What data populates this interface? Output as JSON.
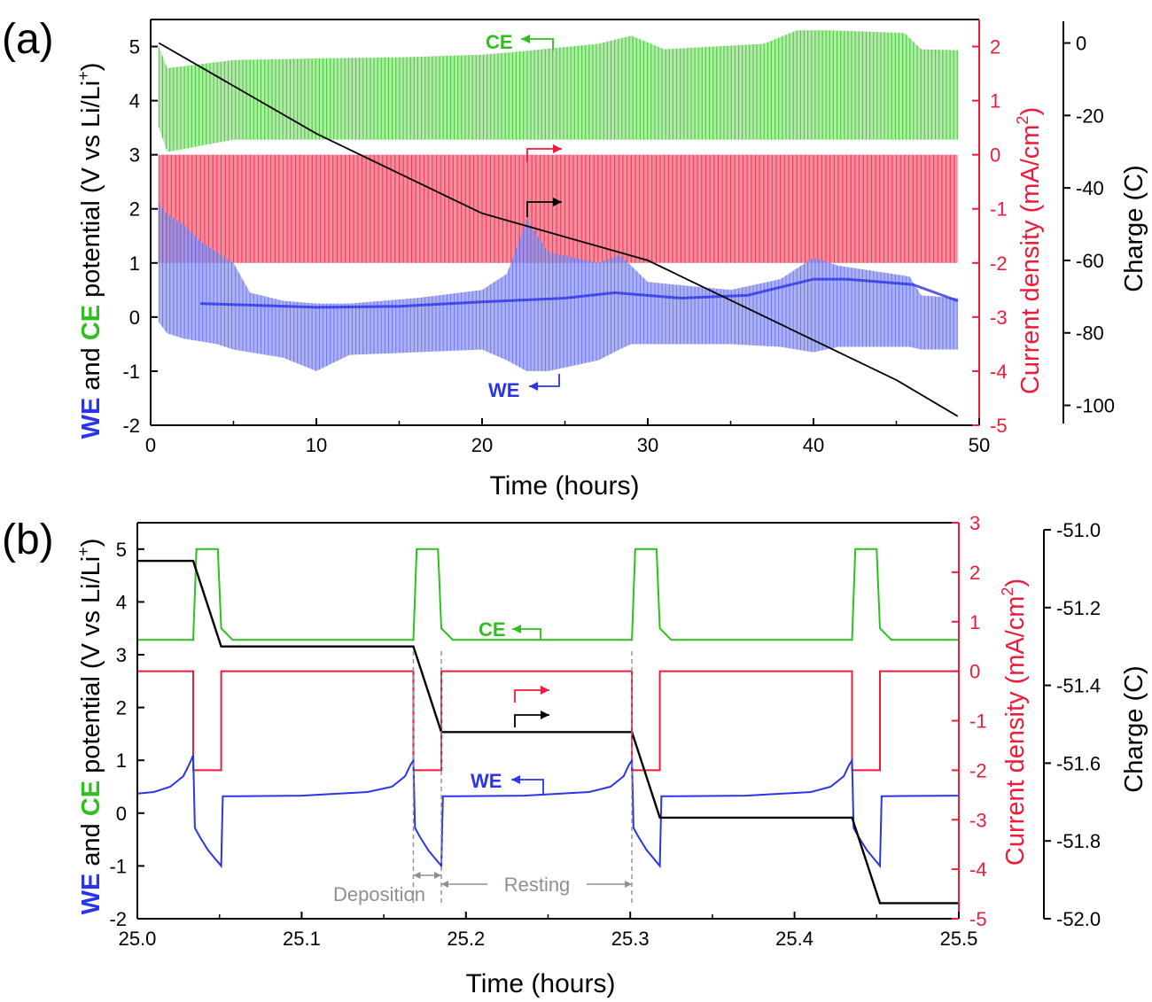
{
  "colors": {
    "we": "#2a35e8",
    "we_light": "#8f97ee",
    "ce": "#2fbf1e",
    "ce_light": "#a3e69a",
    "current": "#ee1c3a",
    "current_light": "#f47f92",
    "charge": "#000000",
    "annot": "#8a9190"
  },
  "chart_data": [
    {
      "panel_label": "(a)",
      "type": "line",
      "x": {
        "label": "Time (hours)",
        "lim": [
          0,
          50
        ],
        "ticks": [
          "0",
          "10",
          "20",
          "30",
          "40",
          "50"
        ]
      },
      "y_left": {
        "label_parts": [
          "WE",
          " and ",
          "CE",
          " potential (V vs Li/Li",
          "+",
          ")"
        ],
        "lim": [
          -2,
          5.5
        ],
        "ticks": [
          "-2",
          "-1",
          "0",
          "1",
          "2",
          "3",
          "4",
          "5"
        ]
      },
      "y_right1": {
        "label": "Current density (mA/cm",
        "label_sup": "2",
        "label_end": ")",
        "lim": [
          -5,
          2.5
        ],
        "ticks": [
          "-5",
          "-4",
          "-3",
          "-2",
          "-1",
          "0",
          "1",
          "2"
        ]
      },
      "y_right2": {
        "label": "Charge (C)",
        "lim": [
          -105,
          6
        ],
        "ticks": [
          "-100",
          "-80",
          "-60",
          "-40",
          "-20",
          "0"
        ]
      },
      "annotations": {
        "ce": "CE",
        "we": "WE"
      },
      "series": [
        {
          "name": "CE",
          "axis": "left",
          "render": "band",
          "x": [
            0.5,
            1.0,
            5,
            10,
            15,
            20,
            22,
            27,
            29,
            31,
            37,
            39,
            41,
            45.5,
            46.5,
            48.7
          ],
          "upper": [
            5.0,
            4.6,
            4.75,
            4.78,
            4.8,
            4.85,
            4.9,
            5.05,
            5.2,
            4.95,
            5.05,
            5.3,
            5.3,
            5.25,
            4.95,
            4.93
          ],
          "lower": [
            3.5,
            3.05,
            3.28,
            3.28,
            3.28,
            3.28,
            3.28,
            3.28,
            3.28,
            3.28,
            3.28,
            3.28,
            3.28,
            3.28,
            3.28,
            3.28
          ]
        },
        {
          "name": "Current density",
          "axis": "right1",
          "render": "band",
          "x": [
            0.5,
            48.7
          ],
          "upper": [
            0,
            0
          ],
          "lower": [
            -2,
            -2
          ]
        },
        {
          "name": "WE",
          "axis": "left",
          "render": "band",
          "x": [
            0.5,
            1,
            2,
            3,
            4,
            5,
            6,
            8,
            10,
            12,
            16,
            20,
            21.5,
            22.7,
            24,
            27,
            28.3,
            29,
            30,
            35,
            38,
            40,
            41.5,
            45.8,
            46.5,
            48.7
          ],
          "upper": [
            2.1,
            1.9,
            1.7,
            1.4,
            1.2,
            1.0,
            0.45,
            0.3,
            0.25,
            0.25,
            0.35,
            0.5,
            0.8,
            1.8,
            1.2,
            1.0,
            1.15,
            0.95,
            0.65,
            0.5,
            0.7,
            1.1,
            0.95,
            0.75,
            0.4,
            0.35
          ],
          "lower": [
            -0.1,
            -0.3,
            -0.4,
            -0.45,
            -0.5,
            -0.6,
            -0.65,
            -0.75,
            -1.0,
            -0.7,
            -0.65,
            -0.6,
            -0.8,
            -1.0,
            -1.0,
            -0.8,
            -0.6,
            -0.5,
            -0.5,
            -0.5,
            -0.55,
            -0.65,
            -0.55,
            -0.55,
            -0.6,
            -0.6
          ]
        },
        {
          "name": "WE mid",
          "axis": "left",
          "render": "line",
          "x": [
            3,
            6,
            10,
            15,
            20,
            25,
            28,
            32,
            36,
            40,
            42,
            46,
            48.7
          ],
          "y": [
            0.25,
            0.22,
            0.18,
            0.2,
            0.28,
            0.35,
            0.45,
            0.35,
            0.4,
            0.7,
            0.7,
            0.6,
            0.3
          ]
        },
        {
          "name": "Charge",
          "axis": "right2",
          "render": "line",
          "x": [
            0.5,
            10,
            20,
            30,
            40,
            45,
            48.7
          ],
          "y": [
            0,
            -25,
            -47,
            -60,
            -82,
            -93,
            -103
          ]
        }
      ]
    },
    {
      "panel_label": "(b)",
      "type": "line",
      "x": {
        "label": "Time (hours)",
        "lim": [
          25.0,
          25.5
        ],
        "ticks": [
          "25.0",
          "25.1",
          "25.2",
          "25.3",
          "25.4",
          "25.5"
        ]
      },
      "y_left": {
        "label_parts": [
          "WE",
          " and ",
          "CE",
          " potential (V vs Li/Li",
          "+",
          ")"
        ],
        "lim": [
          -2,
          5.5
        ],
        "ticks": [
          "-2",
          "-1",
          "0",
          "1",
          "2",
          "3",
          "4",
          "5"
        ]
      },
      "y_right1": {
        "label": "Current density (mA/cm",
        "label_sup": "2",
        "label_end": ")",
        "lim": [
          -5,
          3
        ],
        "ticks": [
          "-5",
          "-4",
          "-3",
          "-2",
          "-1",
          "0",
          "1",
          "2",
          "3"
        ]
      },
      "y_right2": {
        "label": "Charge (C)",
        "lim": [
          -52.0,
          -51.0
        ],
        "ticks": [
          "-52.0",
          "-51.8",
          "-51.6",
          "-51.4",
          "-51.2",
          "-51.0"
        ]
      },
      "annotations": {
        "ce": "CE",
        "we": "WE",
        "deposition": "Deposition",
        "resting": "Resting"
      },
      "series": [
        {
          "name": "CE",
          "axis": "left",
          "x": [
            25.0,
            25.034,
            25.036,
            25.049,
            25.051,
            25.058,
            25.168,
            25.17,
            25.183,
            25.185,
            25.192,
            25.301,
            25.303,
            25.316,
            25.318,
            25.325,
            25.435,
            25.437,
            25.45,
            25.452,
            25.459,
            25.5
          ],
          "y": [
            3.28,
            3.28,
            5.0,
            5.0,
            3.5,
            3.28,
            3.28,
            5.0,
            5.0,
            3.5,
            3.28,
            3.28,
            5.0,
            5.0,
            3.5,
            3.28,
            3.28,
            5.0,
            5.0,
            3.5,
            3.28,
            3.28
          ]
        },
        {
          "name": "Current density",
          "axis": "right1",
          "x": [
            25.0,
            25.034,
            25.034,
            25.051,
            25.051,
            25.168,
            25.168,
            25.185,
            25.185,
            25.301,
            25.301,
            25.318,
            25.318,
            25.435,
            25.435,
            25.452,
            25.452,
            25.5
          ],
          "y": [
            0,
            0,
            -2,
            -2,
            0,
            0,
            -2,
            -2,
            0,
            0,
            -2,
            -2,
            0,
            0,
            -2,
            -2,
            0,
            0
          ]
        },
        {
          "name": "WE",
          "axis": "left",
          "x": [
            25.0,
            25.01,
            25.02,
            25.028,
            25.032,
            25.034,
            25.035,
            25.038,
            25.043,
            25.047,
            25.051,
            25.052,
            25.06,
            25.1,
            25.14,
            25.155,
            25.163,
            25.166,
            25.168,
            25.169,
            25.172,
            25.177,
            25.181,
            25.185,
            25.186,
            25.194,
            25.235,
            25.275,
            25.288,
            25.296,
            25.299,
            25.301,
            25.302,
            25.305,
            25.31,
            25.314,
            25.318,
            25.319,
            25.327,
            25.37,
            25.41,
            25.422,
            25.43,
            25.433,
            25.435,
            25.436,
            25.439,
            25.444,
            25.448,
            25.452,
            25.453,
            25.5
          ],
          "y": [
            0.37,
            0.4,
            0.5,
            0.7,
            0.95,
            1.1,
            -0.28,
            -0.45,
            -0.7,
            -0.85,
            -1.0,
            0.32,
            0.32,
            0.33,
            0.4,
            0.5,
            0.7,
            0.9,
            1.0,
            -0.28,
            -0.45,
            -0.7,
            -0.85,
            -1.0,
            0.32,
            0.32,
            0.33,
            0.4,
            0.5,
            0.7,
            0.9,
            1.0,
            -0.28,
            -0.45,
            -0.7,
            -0.85,
            -1.0,
            0.32,
            0.32,
            0.33,
            0.4,
            0.5,
            0.7,
            0.9,
            1.0,
            -0.28,
            -0.45,
            -0.7,
            -0.85,
            -1.0,
            0.32,
            0.33
          ]
        },
        {
          "name": "Charge",
          "axis": "right2",
          "x": [
            25.0,
            25.034,
            25.051,
            25.168,
            25.185,
            25.301,
            25.318,
            25.435,
            25.452,
            25.5
          ],
          "y": [
            -51.08,
            -51.08,
            -51.3,
            -51.3,
            -51.52,
            -51.52,
            -51.74,
            -51.74,
            -51.96,
            -51.96
          ]
        }
      ]
    }
  ]
}
